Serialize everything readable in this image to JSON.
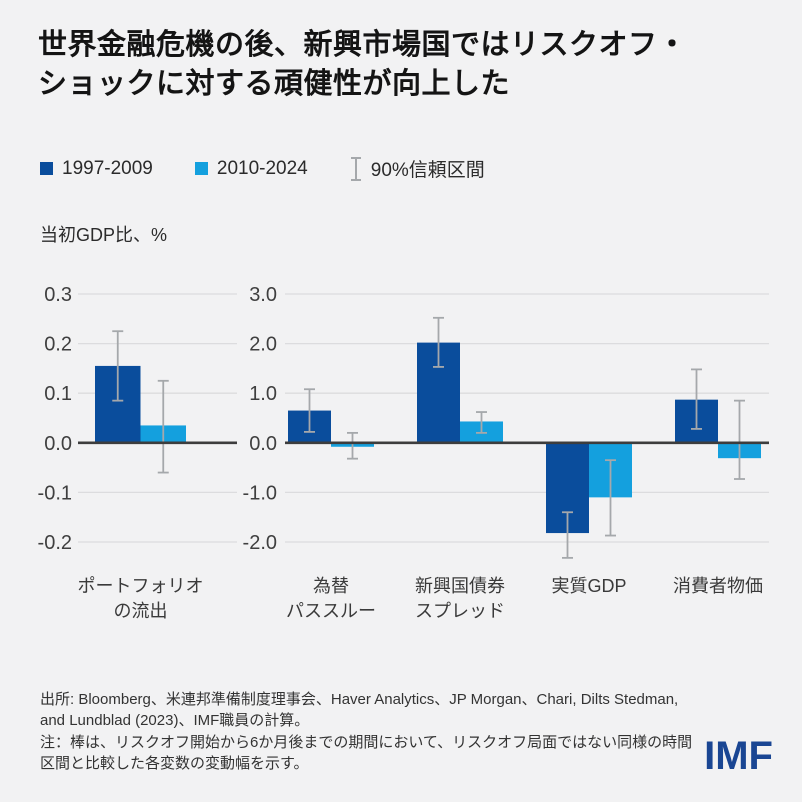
{
  "title": {
    "line1": "世界金融危機の後、新興市場国ではリスクオフ・",
    "line2": "ショックに対する頑健性が向上した"
  },
  "legend": [
    {
      "label": "1997-2009",
      "color": "#0a4d9c",
      "type": "square"
    },
    {
      "label": "2010-2024",
      "color": "#14a0de",
      "type": "square"
    },
    {
      "label": "90%信頼区間",
      "color": "#a5a8ab",
      "type": "errorbar"
    }
  ],
  "axis_title": "当初GDP比、%",
  "colors": {
    "background": "#f2f2f3",
    "series_dark": "#0a4d9c",
    "series_light": "#14a0de",
    "ci_whisker": "#a5a8ab",
    "gridline": "#dcdcde",
    "zero_axis": "#3d3d3d",
    "tick_text": "#3f3f3f",
    "category_text": "#3a3a3a",
    "logo": "#1a4693"
  },
  "chart_data": [
    {
      "type": "bar",
      "title": "",
      "categories": [
        "ポートフォリオ\nの流出"
      ],
      "yticks": [
        0.3,
        0.2,
        0.1,
        0.0,
        -0.1,
        -0.2
      ],
      "ylim": [
        -0.27,
        0.33
      ],
      "grid": true,
      "series": [
        {
          "name": "1997-2009",
          "values": [
            0.155
          ],
          "ci_low": [
            0.085
          ],
          "ci_high": [
            0.225
          ]
        },
        {
          "name": "2010-2024",
          "values": [
            0.035
          ],
          "ci_low": [
            -0.06
          ],
          "ci_high": [
            0.125
          ]
        }
      ]
    },
    {
      "type": "bar",
      "title": "",
      "categories": [
        "為替\nパススルー",
        "新興国債券\nスプレッド",
        "実質GDP",
        "消費者物価"
      ],
      "yticks": [
        3.0,
        2.0,
        1.0,
        0.0,
        -1.0,
        -2.0
      ],
      "ylim": [
        -2.7,
        3.3
      ],
      "grid": true,
      "series": [
        {
          "name": "1997-2009",
          "values": [
            0.65,
            2.02,
            -1.82,
            0.87
          ],
          "ci_low": [
            0.22,
            1.53,
            -2.32,
            0.28
          ],
          "ci_high": [
            1.08,
            2.52,
            -1.4,
            1.48
          ]
        },
        {
          "name": "2010-2024",
          "values": [
            -0.08,
            0.43,
            -1.1,
            -0.31
          ],
          "ci_low": [
            -0.32,
            0.2,
            -1.87,
            -0.73
          ],
          "ci_high": [
            0.2,
            0.62,
            -0.35,
            0.85
          ]
        }
      ]
    }
  ],
  "footer": {
    "source": "出所: Bloomberg、米連邦準備制度理事会、Haver Analytics、JP Morgan、Chari, Dilts Stedman, and Lundblad (2023)、IMF職員の計算。",
    "note": "注：棒は、リスクオフ開始から6か月後までの期間において、リスクオフ局面ではない同様の時間区間と比較した各変数の変動幅を示す。"
  },
  "logo_text": "IMF"
}
